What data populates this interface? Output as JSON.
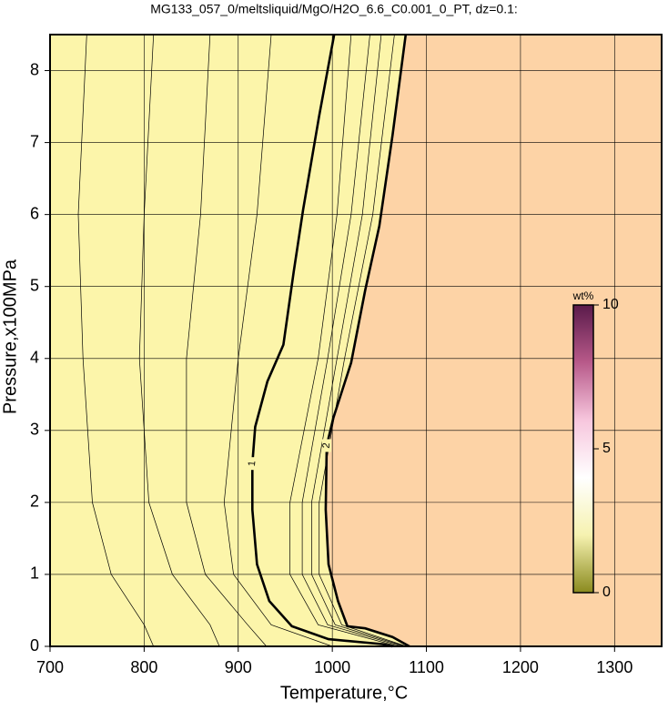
{
  "chart_data": {
    "type": "contour",
    "title": "MG133_057_0/meltsliquid/MgO/H2O_6.6_C0.001_0_PT, dz=0.1:",
    "x_label": "Temperature,°C",
    "y_label": "Pressure,x100MPa",
    "xlim": [
      700,
      1350
    ],
    "ylim": [
      0,
      8.5
    ],
    "xticks": [
      700,
      800,
      900,
      1000,
      1100,
      1200,
      1300
    ],
    "yticks": [
      0,
      1,
      2,
      3,
      4,
      5,
      6,
      7,
      8
    ],
    "grid": true,
    "background_color": "#fcf5aa",
    "saturated_color": "#fdd3a6",
    "fill_boundary": 9,
    "contours": [
      {
        "level": 0.2,
        "x": [
          739,
          730,
          735,
          745,
          765,
          800,
          810
        ],
        "y": [
          8.5,
          6,
          4,
          2,
          1,
          0.3,
          0
        ]
      },
      {
        "level": 0.4,
        "x": [
          810,
          800,
          795,
          805,
          830,
          870,
          880
        ],
        "y": [
          8.5,
          6,
          4,
          2,
          1,
          0.3,
          0
        ]
      },
      {
        "level": 0.6,
        "x": [
          870,
          860,
          845,
          845,
          865,
          910,
          930
        ],
        "y": [
          8.5,
          6,
          4,
          2,
          1,
          0.3,
          0
        ]
      },
      {
        "level": 0.8,
        "x": [
          935,
          920,
          900,
          885,
          895,
          935,
          1000
        ],
        "y": [
          8.5,
          6,
          4,
          2,
          1,
          0.3,
          0
        ]
      },
      {
        "level": 1,
        "x": [
          1002,
          986,
          969,
          959,
          948,
          931,
          918,
          915,
          915,
          920,
          933,
          957,
          996,
          1054,
          1064
        ],
        "y": [
          8.5,
          7.37,
          6.07,
          5.21,
          4.19,
          3.68,
          3.05,
          2.54,
          1.9,
          1.14,
          0.63,
          0.28,
          0.1,
          0.03,
          0
        ]
      },
      {
        "level": 1.2,
        "x": [
          1020,
          1005,
          985,
          955,
          955,
          985,
          1070
        ],
        "y": [
          8.5,
          6,
          4,
          2,
          1,
          0.3,
          0
        ]
      },
      {
        "level": 1.4,
        "x": [
          1040,
          1020,
          995,
          968,
          968,
          995,
          1074
        ],
        "y": [
          8.5,
          6,
          4,
          2,
          1,
          0.3,
          0
        ]
      },
      {
        "level": 1.6,
        "x": [
          1052,
          1032,
          1005,
          978,
          978,
          1003,
          1077
        ],
        "y": [
          8.5,
          6,
          4,
          2,
          1,
          0.3,
          0
        ]
      },
      {
        "level": 1.8,
        "x": [
          1066,
          1043,
          1013,
          986,
          986,
          1010,
          1079
        ],
        "y": [
          8.5,
          6,
          4,
          2,
          1,
          0.3,
          0
        ]
      },
      {
        "level": 2,
        "x": [
          1078,
          1064,
          1050,
          1035,
          1020,
          1001,
          994,
          993,
          996,
          1006,
          1016,
          1035,
          1064,
          1082
        ],
        "y": [
          8.5,
          7.1,
          5.84,
          4.95,
          3.94,
          3.17,
          2.79,
          1.9,
          1.14,
          0.63,
          0.28,
          0.25,
          0.13,
          0
        ]
      }
    ],
    "colorbar": {
      "label": "wt%",
      "lim": [
        0,
        10
      ],
      "ticks": [
        0,
        5,
        10
      ],
      "colors": [
        "#8a8a1e",
        "#f6f2b0",
        "#ffffff",
        "#f7c6dd",
        "#b85a8a",
        "#5a1a4a"
      ]
    }
  }
}
